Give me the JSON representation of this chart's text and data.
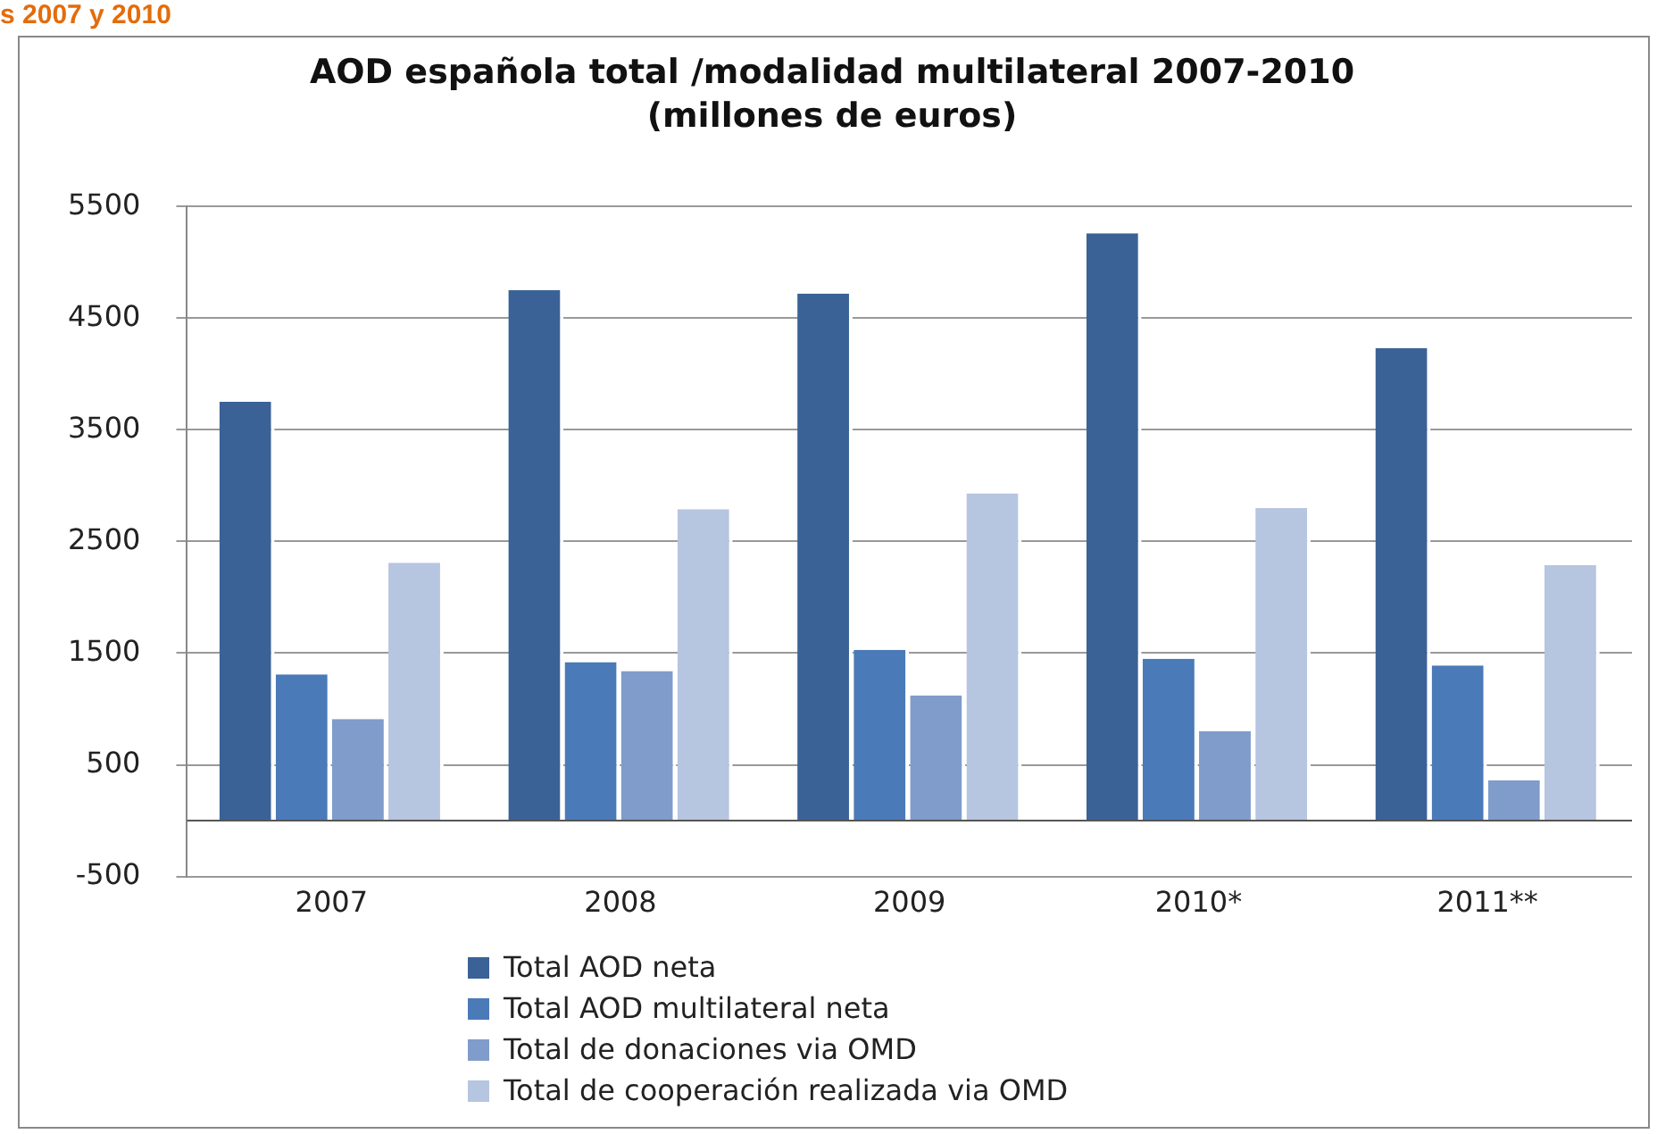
{
  "chart_data": {
    "type": "bar",
    "title": "AOD española total /modalidad multilateral 2007-2010",
    "subtitle": "(millones de euros)",
    "annotations": [
      "s 2007 y 2010"
    ],
    "categories": [
      "2007",
      "2008",
      "2009",
      "2010*",
      "2011**"
    ],
    "series": [
      {
        "name": "Total AOD neta",
        "color": "#3a6296",
        "values": [
          3750,
          4750,
          4720,
          5260,
          4230
        ]
      },
      {
        "name": "Total AOD multilateral  neta",
        "color": "#4a7ab8",
        "values": [
          1310,
          1420,
          1530,
          1450,
          1390
        ]
      },
      {
        "name": "Total de donaciones via OMD",
        "color": "#7f9ccb",
        "values": [
          910,
          1340,
          1120,
          800,
          360
        ]
      },
      {
        "name": "Total de cooperación realizada via OMD",
        "color": "#b6c5e0",
        "values": [
          2310,
          2790,
          2930,
          2800,
          2290
        ]
      }
    ],
    "ylim": [
      -500,
      5500
    ],
    "yticks": [
      -500,
      500,
      1500,
      2500,
      3500,
      4500,
      5500
    ],
    "grid": "y",
    "legend": "bottom"
  }
}
